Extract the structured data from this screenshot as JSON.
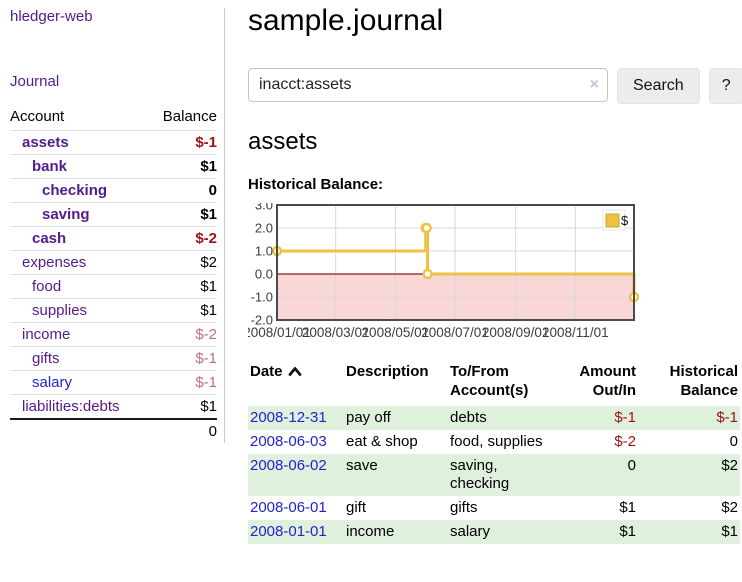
{
  "app": {
    "title": "hledger-web"
  },
  "nav": {
    "journal_label": "Journal"
  },
  "header": {
    "title": "sample.journal"
  },
  "search": {
    "value": "inacct:assets",
    "clear_label": "×",
    "button_label": "Search",
    "help_label": "?"
  },
  "account_page": {
    "heading": "assets",
    "chart_label": "Historical Balance:"
  },
  "sidebar": {
    "columns": {
      "account": "Account",
      "balance": "Balance"
    },
    "accounts": [
      {
        "name": "assets",
        "depth": 1,
        "bold": true,
        "balance": "$-1",
        "balance_tone": "neg-strong"
      },
      {
        "name": "bank",
        "depth": 2,
        "bold": true,
        "balance": "$1",
        "balance_tone": "pos"
      },
      {
        "name": "checking",
        "depth": 3,
        "bold": true,
        "balance": "0",
        "balance_tone": "pos"
      },
      {
        "name": "saving",
        "depth": 3,
        "bold": true,
        "balance": "$1",
        "balance_tone": "pos"
      },
      {
        "name": "cash",
        "depth": 2,
        "bold": true,
        "balance": "$-2",
        "balance_tone": "neg-strong"
      },
      {
        "name": "expenses",
        "depth": 1,
        "bold": false,
        "balance": "$2",
        "balance_tone": "pos"
      },
      {
        "name": "food",
        "depth": 2,
        "bold": false,
        "balance": "$1",
        "balance_tone": "pos"
      },
      {
        "name": "supplies",
        "depth": 2,
        "bold": false,
        "balance": "$1",
        "balance_tone": "pos"
      },
      {
        "name": "income",
        "depth": 1,
        "bold": false,
        "balance": "$-2",
        "balance_tone": "neg-soft"
      },
      {
        "name": "gifts",
        "depth": 2,
        "bold": false,
        "balance": "$-1",
        "balance_tone": "neg-soft"
      },
      {
        "name": "salary",
        "depth": 2,
        "bold": false,
        "balance": "$-1",
        "balance_tone": "neg-soft",
        "link_tone": "unvisited"
      },
      {
        "name": "liabilities:debts",
        "depth": 1,
        "bold": false,
        "balance": "$1",
        "balance_tone": "pos"
      }
    ],
    "total": "0"
  },
  "chart_data": {
    "type": "line",
    "title": "Historical Balance:",
    "series": [
      {
        "name": "$",
        "step": true,
        "points": [
          {
            "date": "2008-01-01",
            "value": 1
          },
          {
            "date": "2008-06-01",
            "value": 2
          },
          {
            "date": "2008-06-02",
            "value": 2
          },
          {
            "date": "2008-06-03",
            "value": 0
          },
          {
            "date": "2008-12-31",
            "value": -1
          }
        ]
      }
    ],
    "x_ticks": [
      "2008/01/01",
      "2008/03/01",
      "2008/05/01",
      "2008/07/01",
      "2008/09/01",
      "2008/11/01"
    ],
    "x_tick_dates": [
      "2008-01-01",
      "2008-03-01",
      "2008-05-01",
      "2008-07-01",
      "2008-09-01",
      "2008-11-01"
    ],
    "xlim": [
      "2008-01-01",
      "2008-12-31"
    ],
    "y_ticks": [
      3.0,
      2.0,
      1.0,
      0.0,
      -1.0,
      -2.0
    ],
    "ylim": [
      -2,
      3
    ],
    "grid": true,
    "legend_position": "top-right",
    "negative_region_shaded": true
  },
  "register": {
    "columns": [
      {
        "label": "Date",
        "lines": [
          "Date"
        ],
        "align": "left",
        "sorted": "asc"
      },
      {
        "label": "Description",
        "lines": [
          "Description"
        ],
        "align": "left"
      },
      {
        "label": "To/From Account(s)",
        "lines": [
          "To/From",
          "Account(s)"
        ],
        "align": "left"
      },
      {
        "label": "Amount Out/In",
        "lines": [
          "Amount",
          "Out/In"
        ],
        "align": "right"
      },
      {
        "label": "Historical Balance",
        "lines": [
          "Historical",
          "Balance"
        ],
        "align": "right"
      }
    ],
    "rows": [
      {
        "date": "2008-12-31",
        "description": "pay off",
        "accounts": "debts",
        "amount": "$-1",
        "balance": "$-1"
      },
      {
        "date": "2008-06-03",
        "description": "eat & shop",
        "accounts": "food, supplies",
        "amount": "$-2",
        "balance": "0"
      },
      {
        "date": "2008-06-02",
        "description": "save",
        "accounts": "saving, checking",
        "amount": "0",
        "balance": "$2"
      },
      {
        "date": "2008-06-01",
        "description": "gift",
        "accounts": "gifts",
        "amount": "$1",
        "balance": "$2"
      },
      {
        "date": "2008-01-01",
        "description": "income",
        "accounts": "salary",
        "amount": "$1",
        "balance": "$1"
      }
    ]
  },
  "colors": {
    "link_purple": "#551a8b",
    "link_blue": "#2323cc",
    "negative_strong": "#9d1313",
    "negative_soft": "#c1707e",
    "row_green": "#dff0dd",
    "chart_line": "#edc240",
    "chart_negative_fill": "#f9d7d7",
    "chart_zero_line": "#8b1a1a",
    "chart_frame": "#4a4a4a",
    "chart_grid": "#d9d9d9",
    "chart_tick_text": "#3c3c3c"
  }
}
